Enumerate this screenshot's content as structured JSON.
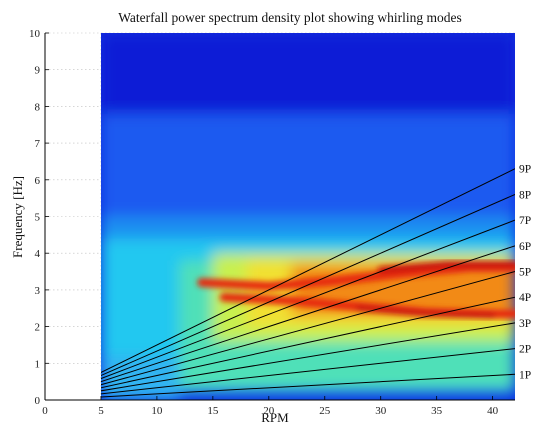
{
  "chart_data": {
    "type": "heatmap",
    "title": "Waterfall power spectrum density plot showing whirling modes",
    "xlabel": "RPM",
    "ylabel": "Frequency [Hz]",
    "xlim": [
      0,
      42
    ],
    "ylim": [
      0,
      10
    ],
    "x_ticks": [
      "0",
      "5",
      "10",
      "15",
      "20",
      "25",
      "30",
      "35",
      "40"
    ],
    "y_ticks": [
      "0",
      "1",
      "2",
      "3",
      "4",
      "5",
      "6",
      "7",
      "8",
      "9",
      "10"
    ],
    "grid": true,
    "data_x_range": [
      5,
      42
    ],
    "colormap": "jet",
    "colors": {
      "low": "#0a1fd6",
      "mid": "#1fd7f0",
      "high": "#e81808",
      "grid": "#bfbfbf",
      "line": "#000000"
    },
    "harmonic_lines": [
      {
        "name": "1P",
        "order": 1
      },
      {
        "name": "2P",
        "order": 2
      },
      {
        "name": "3P",
        "order": 3
      },
      {
        "name": "4P",
        "order": 4
      },
      {
        "name": "5P",
        "order": 5
      },
      {
        "name": "6P",
        "order": 6
      },
      {
        "name": "7P",
        "order": 7
      },
      {
        "name": "8P",
        "order": 8
      },
      {
        "name": "9P",
        "order": 9
      }
    ],
    "harmonic_slope_hz_per_rpm_per_order": 0.01667,
    "whirling_bands": [
      {
        "rpm": [
          15,
          42
        ],
        "freq_center": [
          3.0,
          3.6
        ],
        "intensity": "high"
      },
      {
        "rpm": [
          15,
          42
        ],
        "freq_center": [
          2.6,
          2.3
        ],
        "intensity": "high"
      }
    ]
  }
}
